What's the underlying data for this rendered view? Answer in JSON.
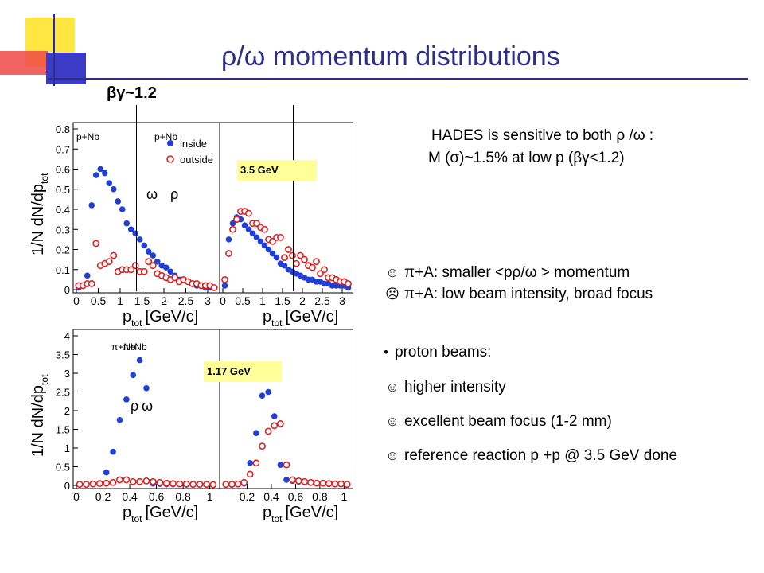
{
  "slide": {
    "title": "ρ/ω momentum distributions",
    "bg_marker": "βγ~1.2",
    "energy_top": "3.5 GeV",
    "energy_bottom": "1.17 GeV",
    "info_line1": "HADES is sensitive to both ρ /ω :",
    "info_line2": "M (σ)~1.5%   at low p (βγ<1.2)",
    "pion_pro": "π+A:  smaller <pρ/ω > momentum",
    "pion_con": "π+A: low beam intensity, broad focus",
    "proton_head": "proton beams:",
    "proton_items": [
      "higher intensity",
      "excellent beam focus (1-2 mm)",
      "reference reaction p +p @ 3.5 GeV done"
    ],
    "icons": {
      "pro": "thumbs-up-icon",
      "con": "thumbs-down-icon",
      "bullet": "bullet-dot-icon"
    },
    "colors": {
      "title": "#2e2e8a",
      "inside": "#1f3fd6",
      "outside": "#e02020",
      "energy_box": "#ffff99"
    }
  },
  "chart_data": [
    {
      "type": "scatter",
      "panel": "pNb-rho",
      "reaction": "p+Nb",
      "meson": "ρ",
      "ylabel": "1/N dN/dp",
      "ylabel_sub": "tot",
      "xlabel": "p",
      "xlabel_sub": "tot",
      "xlabel_unit": "[GeV/c]",
      "xlim": [
        0,
        3.2
      ],
      "ylim": [
        0,
        0.8
      ],
      "xticks": [
        "0",
        "0.5",
        "1",
        "1.5",
        "2",
        "2.5",
        "3"
      ],
      "yticks": [
        "0",
        "0.1",
        "0.2",
        "0.3",
        "0.4",
        "0.5",
        "0.6",
        "0.7",
        "0.8"
      ],
      "legend": [
        "inside",
        "outside"
      ],
      "series": [
        {
          "name": "inside",
          "marker": "filled",
          "x": [
            0.05,
            0.15,
            0.25,
            0.35,
            0.45,
            0.55,
            0.65,
            0.75,
            0.85,
            0.95,
            1.05,
            1.15,
            1.25,
            1.35,
            1.45,
            1.55,
            1.65,
            1.75,
            1.85,
            1.95,
            2.05,
            2.15,
            2.25,
            2.35,
            2.45,
            2.55,
            2.65,
            2.75,
            2.85,
            2.95,
            3.05,
            3.15
          ],
          "y": [
            0.01,
            0.02,
            0.07,
            0.42,
            0.57,
            0.6,
            0.58,
            0.53,
            0.5,
            0.44,
            0.4,
            0.33,
            0.3,
            0.28,
            0.25,
            0.22,
            0.19,
            0.17,
            0.14,
            0.12,
            0.11,
            0.09,
            0.07,
            0.05,
            0.05,
            0.04,
            0.03,
            0.02,
            0.02,
            0.01,
            0.01,
            0.01
          ]
        },
        {
          "name": "outside",
          "marker": "open",
          "x": [
            0.05,
            0.15,
            0.25,
            0.35,
            0.45,
            0.55,
            0.65,
            0.75,
            0.85,
            0.95,
            1.05,
            1.15,
            1.25,
            1.35,
            1.45,
            1.55,
            1.65,
            1.75,
            1.85,
            1.95,
            2.05,
            2.15,
            2.25,
            2.35,
            2.45,
            2.55,
            2.65,
            2.75,
            2.85,
            2.95,
            3.05,
            3.15
          ],
          "y": [
            0.02,
            0.02,
            0.03,
            0.03,
            0.23,
            0.12,
            0.13,
            0.14,
            0.17,
            0.09,
            0.1,
            0.1,
            0.1,
            0.12,
            0.09,
            0.09,
            0.14,
            0.12,
            0.08,
            0.07,
            0.06,
            0.05,
            0.06,
            0.04,
            0.05,
            0.04,
            0.03,
            0.03,
            0.02,
            0.02,
            0.02,
            0.01
          ]
        }
      ]
    },
    {
      "type": "scatter",
      "panel": "pNb-omega",
      "reaction": "p+Nb",
      "meson": "ω",
      "xlabel": "p",
      "xlabel_sub": "tot",
      "xlabel_unit": "[GeV/c]",
      "xlim": [
        0,
        3.2
      ],
      "ylim": [
        0,
        0.8
      ],
      "xticks": [
        "0",
        "0.5",
        "1",
        "1.5",
        "2",
        "2.5",
        "3"
      ],
      "series": [
        {
          "name": "inside",
          "marker": "filled",
          "x": [
            0.05,
            0.15,
            0.25,
            0.35,
            0.45,
            0.55,
            0.65,
            0.75,
            0.85,
            0.95,
            1.05,
            1.15,
            1.25,
            1.35,
            1.45,
            1.55,
            1.65,
            1.75,
            1.85,
            1.95,
            2.05,
            2.15,
            2.25,
            2.35,
            2.45,
            2.55,
            2.65,
            2.75,
            2.85,
            2.95,
            3.05,
            3.15
          ],
          "y": [
            0.02,
            0.25,
            0.33,
            0.36,
            0.35,
            0.32,
            0.3,
            0.28,
            0.26,
            0.24,
            0.22,
            0.2,
            0.18,
            0.16,
            0.13,
            0.12,
            0.1,
            0.09,
            0.08,
            0.07,
            0.06,
            0.05,
            0.05,
            0.04,
            0.04,
            0.03,
            0.03,
            0.02,
            0.02,
            0.02,
            0.02,
            0.01
          ]
        },
        {
          "name": "outside",
          "marker": "open",
          "x": [
            0.05,
            0.15,
            0.25,
            0.35,
            0.45,
            0.55,
            0.65,
            0.75,
            0.85,
            0.95,
            1.05,
            1.15,
            1.25,
            1.35,
            1.45,
            1.55,
            1.65,
            1.75,
            1.85,
            1.95,
            2.05,
            2.15,
            2.25,
            2.35,
            2.45,
            2.55,
            2.65,
            2.75,
            2.85,
            2.95,
            3.05,
            3.15
          ],
          "y": [
            0.05,
            0.18,
            0.3,
            0.35,
            0.39,
            0.39,
            0.38,
            0.33,
            0.33,
            0.31,
            0.3,
            0.25,
            0.24,
            0.26,
            0.26,
            0.16,
            0.2,
            0.17,
            0.13,
            0.17,
            0.15,
            0.12,
            0.11,
            0.14,
            0.08,
            0.1,
            0.06,
            0.06,
            0.05,
            0.04,
            0.04,
            0.03
          ]
        }
      ]
    },
    {
      "type": "scatter",
      "panel": "piNb-rho",
      "reaction": "π+Nb",
      "meson": "ρ",
      "ylabel": "1/N dN/dp",
      "ylabel_sub": "tot",
      "xlabel": "p",
      "xlabel_sub": "tot",
      "xlabel_unit": "[GeV/c]",
      "xlim": [
        0,
        1.05
      ],
      "ylim": [
        0,
        4
      ],
      "xticks": [
        "0",
        "0.2",
        "0.4",
        "0.6",
        "0.8",
        "1"
      ],
      "yticks": [
        "0",
        "0.5",
        "1",
        "1.5",
        "2",
        "2.5",
        "3",
        "3.5",
        "4"
      ],
      "series": [
        {
          "name": "inside",
          "marker": "filled",
          "x": [
            0.025,
            0.075,
            0.125,
            0.175,
            0.225,
            0.275,
            0.325,
            0.375,
            0.425,
            0.475,
            0.525,
            0.575,
            0.625,
            0.675,
            0.725,
            0.775,
            0.825,
            0.875,
            0.925,
            0.975,
            1.025
          ],
          "y": [
            0.02,
            0.02,
            0.03,
            0.05,
            0.35,
            0.9,
            1.75,
            2.3,
            2.95,
            3.35,
            2.6,
            0.05,
            0.04,
            0.03,
            0.03,
            0.03,
            0.02,
            0.02,
            0.02,
            0.02,
            0.02
          ]
        },
        {
          "name": "outside",
          "marker": "open",
          "x": [
            0.025,
            0.075,
            0.125,
            0.175,
            0.225,
            0.275,
            0.325,
            0.375,
            0.425,
            0.475,
            0.525,
            0.575,
            0.625,
            0.675,
            0.725,
            0.775,
            0.825,
            0.875,
            0.925,
            0.975,
            1.025
          ],
          "y": [
            0.03,
            0.03,
            0.04,
            0.05,
            0.06,
            0.08,
            0.15,
            0.15,
            0.1,
            0.1,
            0.12,
            0.1,
            0.08,
            0.06,
            0.05,
            0.04,
            0.04,
            0.03,
            0.03,
            0.03,
            0.02
          ]
        }
      ]
    },
    {
      "type": "scatter",
      "panel": "piNb-omega",
      "reaction": "π+Nb",
      "meson": "ω",
      "xlabel": "p",
      "xlabel_sub": "tot",
      "xlabel_unit": "[GeV/c]",
      "xlim": [
        0,
        1.05
      ],
      "ylim": [
        0,
        4
      ],
      "xticks": [
        "0.2",
        "0.4",
        "0.6",
        "0.8",
        "1"
      ],
      "series": [
        {
          "name": "inside",
          "marker": "filled",
          "x": [
            0.025,
            0.075,
            0.125,
            0.175,
            0.225,
            0.275,
            0.325,
            0.375,
            0.425,
            0.475,
            0.525,
            0.575,
            0.625,
            0.675,
            0.725,
            0.775,
            0.825,
            0.875,
            0.925,
            0.975,
            1.025
          ],
          "y": [
            0.02,
            0.02,
            0.03,
            0.05,
            0.6,
            1.4,
            2.4,
            2.5,
            1.85,
            0.55,
            0.15,
            0.12,
            0.1,
            0.08,
            0.07,
            0.05,
            0.05,
            0.04,
            0.03,
            0.03,
            0.02
          ]
        },
        {
          "name": "outside",
          "marker": "open",
          "x": [
            0.025,
            0.075,
            0.125,
            0.175,
            0.225,
            0.275,
            0.325,
            0.375,
            0.425,
            0.475,
            0.525,
            0.575,
            0.625,
            0.675,
            0.725,
            0.775,
            0.825,
            0.875,
            0.925,
            0.975,
            1.025
          ],
          "y": [
            0.03,
            0.03,
            0.04,
            0.08,
            0.3,
            0.6,
            1.05,
            1.45,
            1.6,
            1.65,
            0.55,
            0.15,
            0.12,
            0.1,
            0.08,
            0.06,
            0.06,
            0.05,
            0.04,
            0.04,
            0.03
          ]
        }
      ]
    }
  ]
}
